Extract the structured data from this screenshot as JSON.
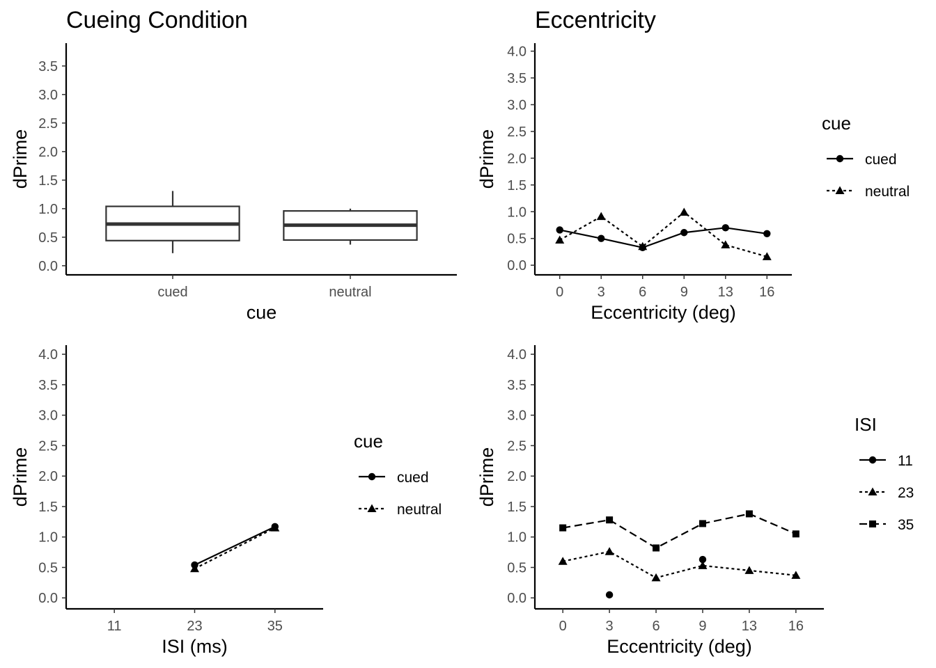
{
  "colors": {
    "ink": "#000000",
    "box": "#333333",
    "tick_text": "#4d4d4d",
    "background": "#ffffff"
  },
  "chart_data": [
    {
      "id": "panel1",
      "type": "boxplot",
      "title": "Cueing Condition",
      "xlabel": "cue",
      "ylabel": "dPrime",
      "ylim": [
        -0.16,
        3.9
      ],
      "yticks": [
        "0.0",
        "0.5",
        "1.0",
        "1.5",
        "2.0",
        "2.5",
        "3.0",
        "3.5"
      ],
      "categories": [
        "cued",
        "neutral"
      ],
      "boxes": [
        {
          "category": "cued",
          "min": 0.22,
          "q1": 0.44,
          "median": 0.73,
          "q3": 1.04,
          "max": 1.31
        },
        {
          "category": "neutral",
          "min": 0.37,
          "q1": 0.45,
          "median": 0.71,
          "q3": 0.96,
          "max": 1.0
        }
      ]
    },
    {
      "id": "panel2",
      "type": "line",
      "title": "Eccentricity",
      "xlabel": "Eccentricity (deg)",
      "ylabel": "dPrime",
      "ylim": [
        -0.18,
        4.15
      ],
      "yticks": [
        "0.0",
        "0.5",
        "1.0",
        "1.5",
        "2.0",
        "2.5",
        "3.0",
        "3.5",
        "4.0"
      ],
      "x": [
        "0",
        "3",
        "6",
        "9",
        "13",
        "16"
      ],
      "legend_title": "cue",
      "legend_position": "right",
      "series": [
        {
          "name": "cued",
          "line": "solid",
          "marker": "circle",
          "values": [
            0.66,
            0.5,
            0.33,
            0.61,
            0.7,
            0.59
          ]
        },
        {
          "name": "neutral",
          "line": "dotted",
          "marker": "triangle",
          "values": [
            0.47,
            0.91,
            0.35,
            0.99,
            0.38,
            0.16
          ]
        }
      ]
    },
    {
      "id": "panel3",
      "type": "line",
      "title": "",
      "xlabel": "ISI (ms)",
      "ylabel": "dPrime",
      "ylim": [
        -0.18,
        4.15
      ],
      "yticks": [
        "0.0",
        "0.5",
        "1.0",
        "1.5",
        "2.0",
        "2.5",
        "3.0",
        "3.5",
        "4.0"
      ],
      "x": [
        "11",
        "23",
        "35"
      ],
      "legend_title": "cue",
      "legend_position": "right",
      "series": [
        {
          "name": "cued",
          "line": "solid",
          "marker": "circle",
          "values": [
            null,
            0.54,
            1.17
          ]
        },
        {
          "name": "neutral",
          "line": "dotted",
          "marker": "triangle",
          "values": [
            null,
            0.48,
            1.15
          ]
        }
      ]
    },
    {
      "id": "panel4",
      "type": "line",
      "title": "",
      "xlabel": "Eccentricity (deg)",
      "ylabel": "dPrime",
      "ylim": [
        -0.18,
        4.15
      ],
      "yticks": [
        "0.0",
        "0.5",
        "1.0",
        "1.5",
        "2.0",
        "2.5",
        "3.0",
        "3.5",
        "4.0"
      ],
      "x": [
        "0",
        "3",
        "6",
        "9",
        "13",
        "16"
      ],
      "legend_title": "ISI",
      "legend_position": "right",
      "series": [
        {
          "name": "11",
          "line": "solid",
          "marker": "circle",
          "values": [
            null,
            0.05,
            null,
            0.63,
            null,
            null
          ]
        },
        {
          "name": "23",
          "line": "dotted",
          "marker": "triangle",
          "values": [
            0.6,
            0.76,
            0.33,
            0.53,
            0.45,
            0.37
          ]
        },
        {
          "name": "35",
          "line": "dashed",
          "marker": "square",
          "values": [
            1.15,
            1.28,
            0.82,
            1.22,
            1.38,
            1.05
          ]
        }
      ]
    }
  ]
}
